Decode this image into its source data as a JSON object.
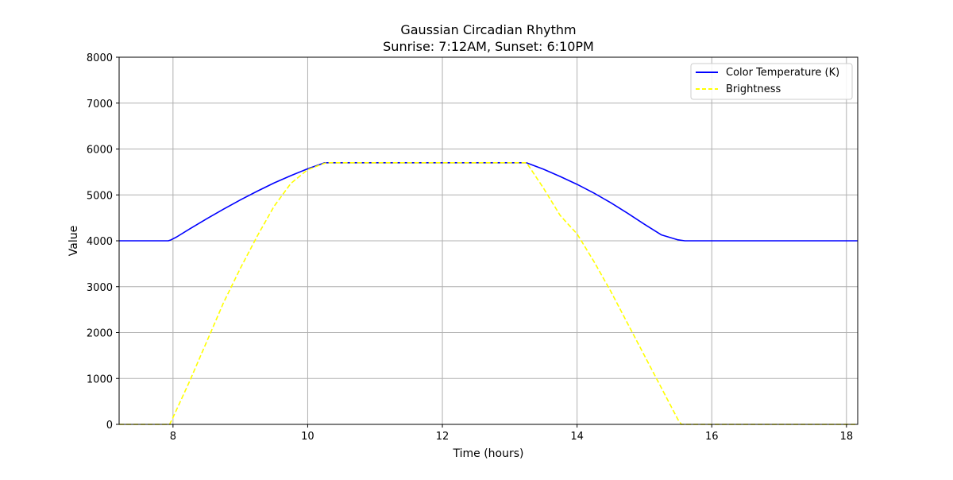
{
  "chart_data": {
    "type": "line",
    "title_line1": "Gaussian Circadian Rhythm",
    "title_line2": "Sunrise: 7:12AM, Sunset: 6:10PM",
    "xlabel": "Time (hours)",
    "ylabel": "Value",
    "xlim": [
      7.2,
      18.167
    ],
    "ylim": [
      0,
      8000
    ],
    "xticks": [
      8,
      10,
      12,
      14,
      16,
      18
    ],
    "yticks": [
      0,
      1000,
      2000,
      3000,
      4000,
      5000,
      6000,
      7000,
      8000
    ],
    "grid": true,
    "legend_placement": "top-right",
    "series": [
      {
        "name": "Color Temperature (K)",
        "color": "#0000ff",
        "linestyle": "solid",
        "x": [
          7.2,
          7.93,
          7.97,
          8.05,
          8.25,
          8.5,
          8.75,
          9.0,
          9.25,
          9.5,
          9.75,
          10.0,
          10.25,
          13.25,
          13.5,
          13.75,
          14.0,
          14.25,
          14.5,
          14.75,
          15.0,
          15.25,
          15.5,
          15.6,
          18.167
        ],
        "y": [
          4000,
          4000,
          4020,
          4080,
          4260,
          4480,
          4690,
          4890,
          5080,
          5260,
          5420,
          5570,
          5700,
          5700,
          5560,
          5400,
          5230,
          5040,
          4830,
          4600,
          4360,
          4130,
          4020,
          4000,
          4000
        ]
      },
      {
        "name": "Brightness",
        "color": "#ffff00",
        "linestyle": "dashed",
        "x": [
          7.2,
          7.95,
          8.0,
          8.25,
          8.5,
          8.75,
          9.0,
          9.25,
          9.5,
          9.75,
          10.0,
          10.27,
          13.25,
          13.5,
          13.75,
          14.0,
          14.25,
          14.5,
          14.75,
          15.0,
          15.25,
          15.5,
          15.55,
          18.167
        ],
        "y": [
          0,
          0,
          150,
          950,
          1800,
          2650,
          3400,
          4100,
          4750,
          5250,
          5550,
          5700,
          5700,
          5150,
          4550,
          4150,
          3550,
          2900,
          2200,
          1500,
          800,
          100,
          0,
          0
        ]
      }
    ]
  }
}
